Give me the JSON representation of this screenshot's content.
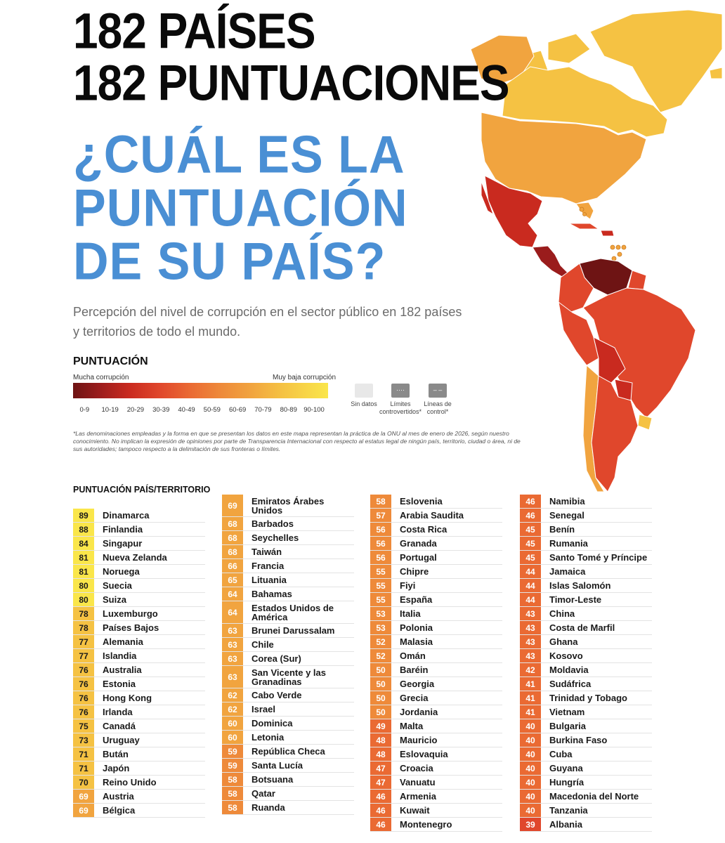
{
  "header": {
    "line1": "182 PAÍSES",
    "line2": "182 PUNTUACIONES",
    "question1": "¿CUÁL ES LA",
    "question2": "PUNTUACIÓN",
    "question3": "DE SU PAÍS?"
  },
  "subtitle": "Percepción del nivel de corrupción en el sector público en 182 países y territorios de todo el mundo.",
  "legend": {
    "title": "PUNTUACIÓN",
    "low_label": "Mucha corrupción",
    "high_label": "Muy baja corrupción",
    "ranges": [
      "0-9",
      "10-19",
      "20-29",
      "30-39",
      "40-49",
      "50-59",
      "60-69",
      "70-79",
      "80-89",
      "90-100"
    ],
    "no_data": "Sin datos",
    "disputed": "Límites controvertidos*",
    "control": "Líneas de control*",
    "colors": [
      "#6e1414",
      "#9a1c1c",
      "#c92a1f",
      "#e0472c",
      "#ea6a33",
      "#ee8a3a",
      "#f1a43f",
      "#f5c243",
      "#f9dd47",
      "#fae64a"
    ]
  },
  "footnote": "*Las denominaciones empleadas y la forma en que se presentan los datos en este mapa representan la práctica de la ONU al mes de enero de 2026, según nuestro conocimiento. No implican la expresión de opiniones por parte de Transparencia Internacional con respecto al estatus legal de ningún país, territorio, ciudad o área, ni de sus autoridades; tampoco respecto a la delimitación de sus fronteras o límites.",
  "list_title": "PUNTUACIÓN PAÍS/TERRITORIO",
  "columns": [
    [
      {
        "score": "89",
        "name": "Dinamarca"
      },
      {
        "score": "88",
        "name": "Finlandia"
      },
      {
        "score": "84",
        "name": "Singapur"
      },
      {
        "score": "81",
        "name": "Nueva Zelanda"
      },
      {
        "score": "81",
        "name": "Noruega"
      },
      {
        "score": "80",
        "name": "Suecia"
      },
      {
        "score": "80",
        "name": "Suiza"
      },
      {
        "score": "78",
        "name": "Luxemburgo"
      },
      {
        "score": "78",
        "name": "Países Bajos"
      },
      {
        "score": "77",
        "name": "Alemania"
      },
      {
        "score": "77",
        "name": "Islandia"
      },
      {
        "score": "76",
        "name": "Australia"
      },
      {
        "score": "76",
        "name": "Estonia"
      },
      {
        "score": "76",
        "name": "Hong Kong"
      },
      {
        "score": "76",
        "name": "Irlanda"
      },
      {
        "score": "75",
        "name": "Canadá"
      },
      {
        "score": "73",
        "name": "Uruguay"
      },
      {
        "score": "71",
        "name": "Bután"
      },
      {
        "score": "71",
        "name": "Japón"
      },
      {
        "score": "70",
        "name": "Reino Unido"
      },
      {
        "score": "69",
        "name": "Austria"
      },
      {
        "score": "69",
        "name": "Bélgica"
      }
    ],
    [
      {
        "score": "69",
        "name": "Emiratos Árabes Unidos"
      },
      {
        "score": "68",
        "name": "Barbados"
      },
      {
        "score": "68",
        "name": "Seychelles"
      },
      {
        "score": "68",
        "name": "Taiwán"
      },
      {
        "score": "66",
        "name": "Francia"
      },
      {
        "score": "65",
        "name": "Lituania"
      },
      {
        "score": "64",
        "name": "Bahamas"
      },
      {
        "score": "64",
        "name": "Estados Unidos de América"
      },
      {
        "score": "63",
        "name": "Brunei Darussalam"
      },
      {
        "score": "63",
        "name": "Chile"
      },
      {
        "score": "63",
        "name": "Corea (Sur)"
      },
      {
        "score": "63",
        "name": "San Vicente y las Granadinas"
      },
      {
        "score": "62",
        "name": "Cabo Verde"
      },
      {
        "score": "62",
        "name": "Israel"
      },
      {
        "score": "60",
        "name": "Dominica"
      },
      {
        "score": "60",
        "name": "Letonia"
      },
      {
        "score": "59",
        "name": "República Checa"
      },
      {
        "score": "59",
        "name": "Santa Lucía"
      },
      {
        "score": "58",
        "name": "Botsuana"
      },
      {
        "score": "58",
        "name": "Qatar"
      },
      {
        "score": "58",
        "name": "Ruanda"
      }
    ],
    [
      {
        "score": "58",
        "name": "Eslovenia"
      },
      {
        "score": "57",
        "name": "Arabia Saudita"
      },
      {
        "score": "56",
        "name": "Costa Rica"
      },
      {
        "score": "56",
        "name": "Granada"
      },
      {
        "score": "56",
        "name": "Portugal"
      },
      {
        "score": "55",
        "name": "Chipre"
      },
      {
        "score": "55",
        "name": "Fiyi"
      },
      {
        "score": "55",
        "name": "España"
      },
      {
        "score": "53",
        "name": "Italia"
      },
      {
        "score": "53",
        "name": "Polonia"
      },
      {
        "score": "52",
        "name": "Malasia"
      },
      {
        "score": "52",
        "name": "Omán"
      },
      {
        "score": "50",
        "name": "Baréin"
      },
      {
        "score": "50",
        "name": "Georgia"
      },
      {
        "score": "50",
        "name": "Grecia"
      },
      {
        "score": "50",
        "name": "Jordania"
      },
      {
        "score": "49",
        "name": "Malta"
      },
      {
        "score": "48",
        "name": "Mauricio"
      },
      {
        "score": "48",
        "name": "Eslovaquia"
      },
      {
        "score": "47",
        "name": "Croacia"
      },
      {
        "score": "47",
        "name": "Vanuatu"
      },
      {
        "score": "46",
        "name": "Armenia"
      },
      {
        "score": "46",
        "name": "Kuwait"
      },
      {
        "score": "46",
        "name": "Montenegro"
      }
    ],
    [
      {
        "score": "46",
        "name": "Namibia"
      },
      {
        "score": "46",
        "name": "Senegal"
      },
      {
        "score": "45",
        "name": "Benín"
      },
      {
        "score": "45",
        "name": "Rumania"
      },
      {
        "score": "45",
        "name": "Santo Tomé y Príncipe"
      },
      {
        "score": "44",
        "name": "Jamaica"
      },
      {
        "score": "44",
        "name": "Islas Salomón"
      },
      {
        "score": "44",
        "name": "Timor-Leste"
      },
      {
        "score": "43",
        "name": "China"
      },
      {
        "score": "43",
        "name": "Costa de Marfil"
      },
      {
        "score": "43",
        "name": "Ghana"
      },
      {
        "score": "43",
        "name": "Kosovo"
      },
      {
        "score": "42",
        "name": "Moldavia"
      },
      {
        "score": "41",
        "name": "Sudáfrica"
      },
      {
        "score": "41",
        "name": "Trinidad y Tobago"
      },
      {
        "score": "41",
        "name": "Vietnam"
      },
      {
        "score": "40",
        "name": "Bulgaria"
      },
      {
        "score": "40",
        "name": "Burkina Faso"
      },
      {
        "score": "40",
        "name": "Cuba"
      },
      {
        "score": "40",
        "name": "Guyana"
      },
      {
        "score": "40",
        "name": "Hungría"
      },
      {
        "score": "40",
        "name": "Macedonia del Norte"
      },
      {
        "score": "40",
        "name": "Tanzania"
      },
      {
        "score": "39",
        "name": "Albania"
      }
    ]
  ]
}
